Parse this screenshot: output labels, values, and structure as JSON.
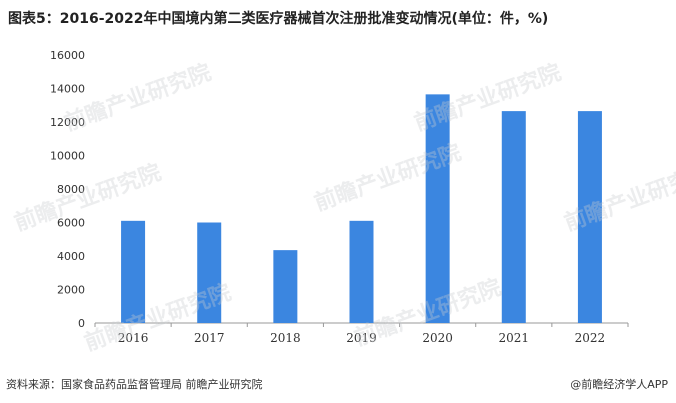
{
  "title": "图表5：2016-2022年中国境内第二类医疗器械首次注册批准变动情况(单位：件，%)",
  "footer": {
    "source": "资料来源：国家食品药品监督管理局 前瞻产业研究院",
    "brand": "@前瞻经济学人APP"
  },
  "watermark_text": "前瞻产业研究院",
  "colors": {
    "bar": "#3b86e0",
    "axis": "#999999",
    "tick_text": "#333333"
  },
  "chart_data": {
    "type": "bar",
    "categories": [
      "2016",
      "2017",
      "2018",
      "2019",
      "2020",
      "2021",
      "2022"
    ],
    "values": [
      6100,
      6000,
      4350,
      6100,
      13650,
      12650,
      12650
    ],
    "ylim": [
      0,
      16000
    ],
    "yticks": [
      "0",
      "2000",
      "4000",
      "6000",
      "8000",
      "10000",
      "12000",
      "14000",
      "16000"
    ],
    "grid": false
  }
}
